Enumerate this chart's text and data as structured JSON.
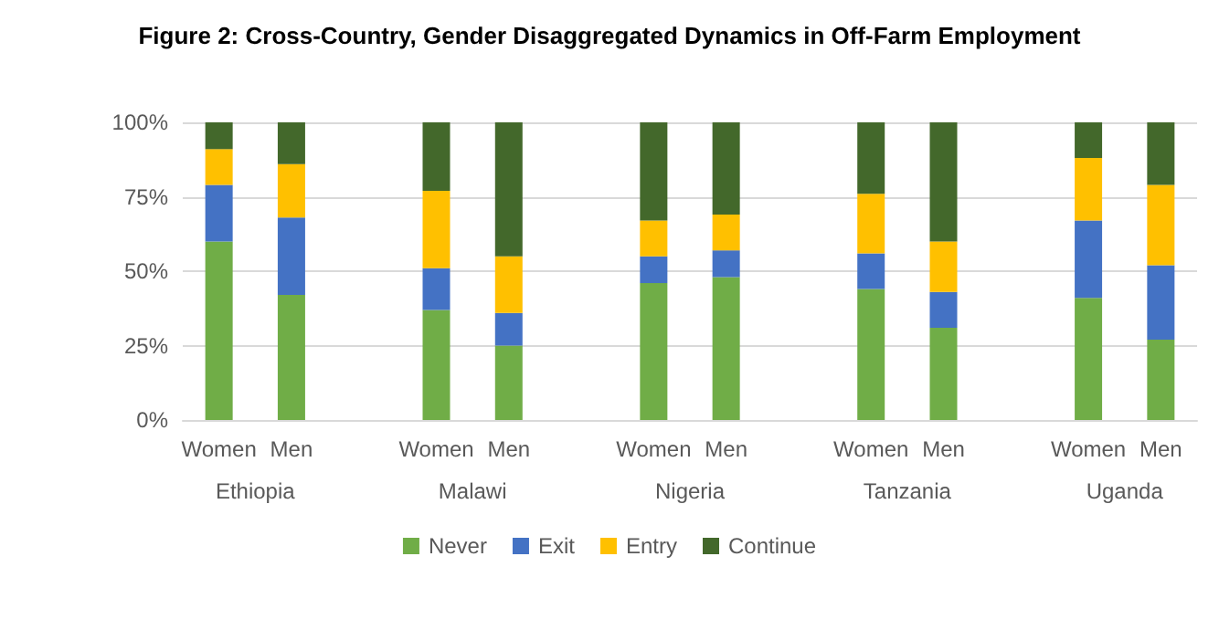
{
  "chart_data": {
    "type": "bar",
    "title": "Figure 2: Cross-Country, Gender Disaggregated Dynamics in Off-Farm Employment",
    "categories": [
      "Women",
      "Men",
      null,
      "Women",
      "Men",
      null,
      "Women",
      "Men",
      null,
      "Women",
      "Men",
      null,
      "Women",
      "Men"
    ],
    "series": [
      {
        "name": "Never",
        "color": "#70ad47",
        "values": [
          60,
          42,
          null,
          37,
          25,
          null,
          46,
          48,
          null,
          44,
          31,
          null,
          41,
          27
        ]
      },
      {
        "name": "Exit",
        "color": "#4472c4",
        "values": [
          19,
          26,
          null,
          14,
          11,
          null,
          9,
          9,
          null,
          12,
          12,
          null,
          26,
          25
        ]
      },
      {
        "name": "Entry",
        "color": "#ffc000",
        "values": [
          12,
          18,
          null,
          26,
          19,
          null,
          12,
          12,
          null,
          20,
          17,
          null,
          21,
          27
        ]
      },
      {
        "name": "Continue",
        "color": "#43682b",
        "values": [
          9,
          14,
          null,
          23,
          45,
          null,
          33,
          31,
          null,
          24,
          40,
          null,
          12,
          21
        ]
      }
    ],
    "stacked": true,
    "ylim": [
      0,
      100
    ],
    "yticks": [
      {
        "value": 0,
        "label": "0%"
      },
      {
        "value": 25,
        "label": "25%"
      },
      {
        "value": 50,
        "label": "50%"
      },
      {
        "value": 75,
        "label": "75%"
      },
      {
        "value": 100,
        "label": "100%"
      }
    ],
    "grid": "y",
    "legend": "bottom",
    "annotations": [
      "Ethiopia",
      "Malawi",
      "Nigeria",
      "Tanzania",
      "Uganda"
    ]
  }
}
